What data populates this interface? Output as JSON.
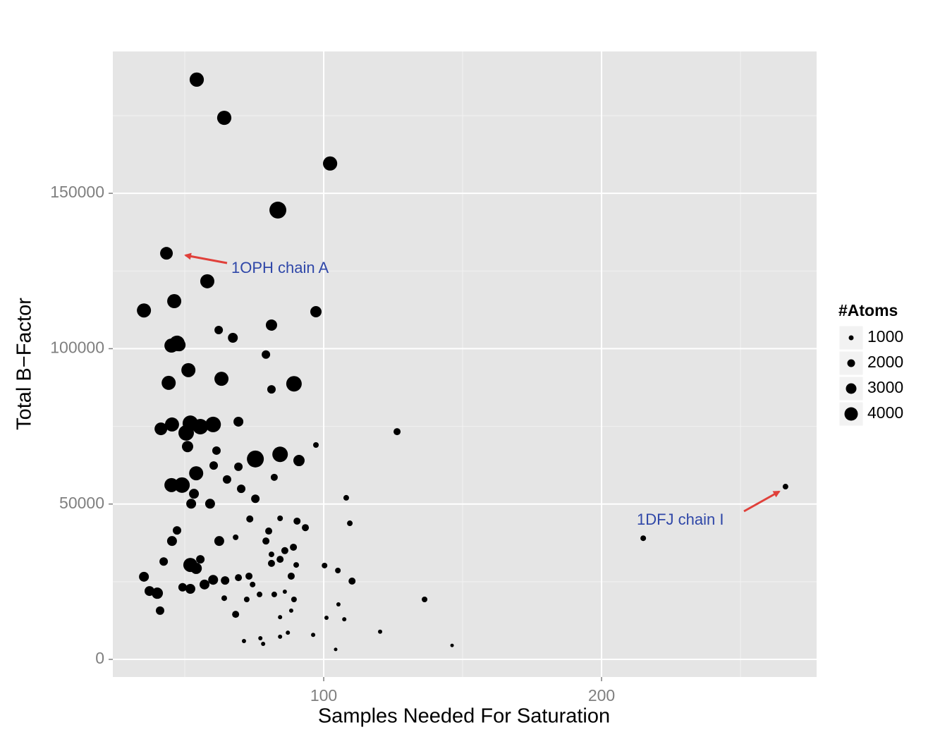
{
  "chart_data": {
    "type": "scatter",
    "x_label": "Samples Needed For Saturation",
    "y_label": "Total B−Factor",
    "color": "#000000",
    "x": [
      54.3,
      64.2,
      102.3,
      83.5,
      43.4,
      58.1,
      35.3,
      46.2,
      97.2,
      62.2,
      67.3,
      81.2,
      45.2,
      47.2,
      48.0,
      79.2,
      51.3,
      44.2,
      63.2,
      89.3,
      81.2,
      69.3,
      41.4,
      45.4,
      52.0,
      50.5,
      55.6,
      60.2,
      126.4,
      97.2,
      51.0,
      61.4,
      75.4,
      84.3,
      91.1,
      60.4,
      69.3,
      54.1,
      65.2,
      82.2,
      45.2,
      49.0,
      53.3,
      70.3,
      75.4,
      52.3,
      59.1,
      108.1,
      266.2,
      73.4,
      84.3,
      90.4,
      93.4,
      109.4,
      47.2,
      80.2,
      45.4,
      62.4,
      68.3,
      79.2,
      215.0,
      42.4,
      55.6,
      52.0,
      54.1,
      81.2,
      84.3,
      86.0,
      89.1,
      81.2,
      90.1,
      100.3,
      105.1,
      35.3,
      88.3,
      110.2,
      60.2,
      64.5,
      69.3,
      73.1,
      57.1,
      74.4,
      49.2,
      52.0,
      37.3,
      40.1,
      86.0,
      76.9,
      82.2,
      64.2,
      72.3,
      89.3,
      136.3,
      105.3,
      41.1,
      88.3,
      68.3,
      84.3,
      101.0,
      107.4,
      120.3,
      87.1,
      96.2,
      84.3,
      77.2,
      71.3,
      78.2,
      146.2,
      104.3
    ],
    "values": [
      186600,
      174300,
      159600,
      144600,
      130700,
      121700,
      112300,
      115300,
      111900,
      106000,
      103500,
      107600,
      101000,
      101700,
      101200,
      98100,
      93100,
      89000,
      90300,
      88700,
      86900,
      76500,
      74200,
      75600,
      76000,
      72900,
      74900,
      75600,
      73300,
      69000,
      68500,
      67200,
      64500,
      66000,
      64000,
      62400,
      62000,
      59900,
      57900,
      58600,
      56100,
      56100,
      53300,
      54900,
      51700,
      50100,
      50100,
      52000,
      55600,
      45200,
      45400,
      44500,
      42400,
      43800,
      41500,
      41300,
      38100,
      38100,
      39300,
      38100,
      39000,
      31500,
      32200,
      30400,
      29300,
      33800,
      32200,
      35000,
      36100,
      30900,
      30400,
      30200,
      28600,
      26600,
      26800,
      25200,
      25600,
      25400,
      26300,
      26800,
      24100,
      24100,
      23200,
      22700,
      22000,
      21300,
      21800,
      20900,
      20900,
      19700,
      19300,
      19300,
      19300,
      17700,
      15700,
      15700,
      14500,
      13600,
      13400,
      12900,
      8900,
      8600,
      7900,
      7300,
      6800,
      5900,
      5000,
      4500,
      3200
    ],
    "sizes": [
      4300,
      4300,
      4300,
      5250,
      3750,
      4250,
      4250,
      4250,
      3250,
      2250,
      2750,
      3250,
      4250,
      4750,
      3750,
      2250,
      4250,
      4250,
      4250,
      4750,
      2250,
      2750,
      3750,
      4250,
      4750,
      4750,
      4750,
      4750,
      1750,
      1250,
      3250,
      2250,
      5250,
      4750,
      3250,
      2250,
      2250,
      4250,
      2250,
      1750,
      4250,
      4750,
      2750,
      2250,
      2250,
      2750,
      2750,
      1250,
      1250,
      1750,
      1250,
      1750,
      1750,
      1250,
      2250,
      1750,
      2750,
      2750,
      1250,
      1750,
      1250,
      2250,
      2250,
      4250,
      3250,
      1250,
      1750,
      1750,
      1750,
      1750,
      1250,
      1250,
      1250,
      2750,
      1750,
      1750,
      2750,
      2250,
      1750,
      1750,
      2750,
      1250,
      2250,
      2750,
      2750,
      3250,
      750,
      1250,
      1250,
      1250,
      1250,
      1250,
      1250,
      750,
      2250,
      750,
      1750,
      750,
      750,
      750,
      750,
      750,
      750,
      750,
      750,
      750,
      750,
      500,
      500
    ],
    "xlim": [
      24.1,
      277.4
    ],
    "ylim": [
      -5670,
      195650
    ],
    "xticks": [
      100,
      200
    ],
    "yticks": [
      0,
      50000,
      100000,
      150000
    ],
    "grid": true,
    "size_legend": {
      "title": "#Atoms",
      "values": [
        1000,
        2000,
        3000,
        4000
      ]
    },
    "annotations": [
      "1OPH chain A",
      "1DFJ chain I"
    ]
  }
}
